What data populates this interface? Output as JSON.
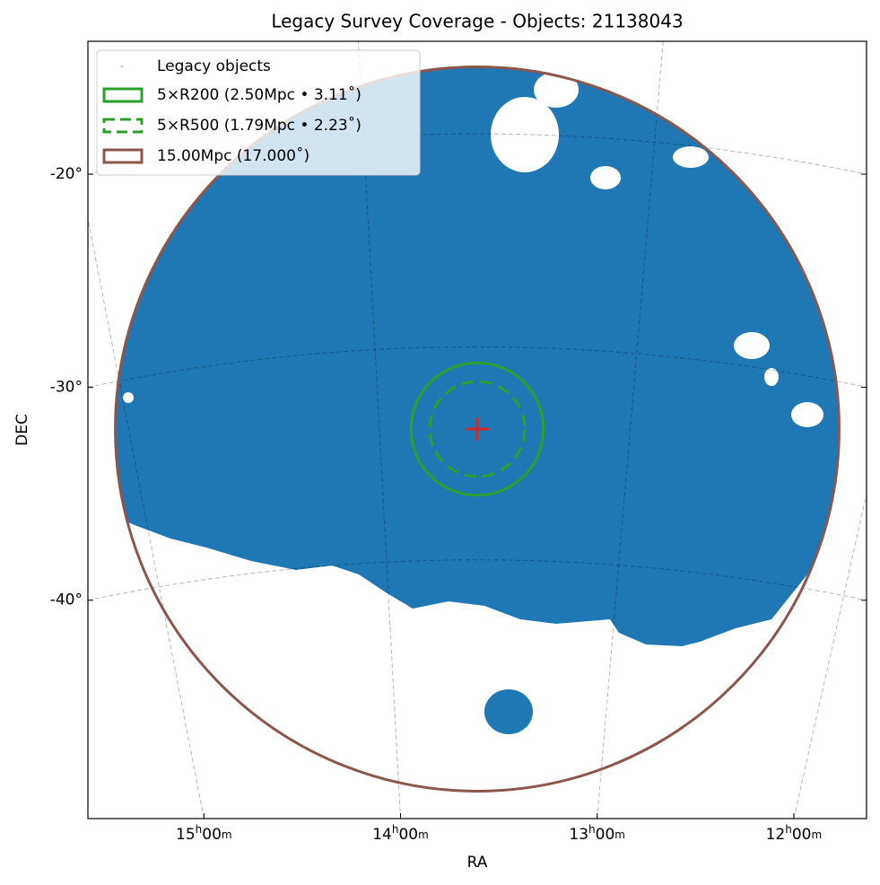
{
  "chart_data": {
    "type": "sky-map",
    "title": "Legacy Survey Coverage - Objects: 21138043",
    "x_label": "RA",
    "y_label": "DEC",
    "xlim": [
      15.59,
      11.63
    ],
    "xticks": [
      {
        "value": 15,
        "label": "15h00m"
      },
      {
        "value": 14,
        "label": "14h00m"
      },
      {
        "value": 13,
        "label": "13h00m"
      },
      {
        "value": 12,
        "label": "12h00m"
      }
    ],
    "ylim": [
      -13.76,
      -50.25
    ],
    "yticks": [
      {
        "value": -20,
        "label": "-20°"
      },
      {
        "value": -30,
        "label": "-30°"
      },
      {
        "value": -40,
        "label": "-40°"
      }
    ],
    "grid": true,
    "series": [
      {
        "name": "Legacy objects",
        "color": "#1f77b4"
      }
    ],
    "circles": [
      {
        "name": "5×R200 (2.50Mpc • 3.11˚)",
        "color": "#2ca02c",
        "radius": 3.11,
        "dashed": false
      },
      {
        "name": "5×R500 (1.79Mpc • 2.23˚)",
        "color": "#2ca02c",
        "radius": 2.23,
        "dashed": true
      },
      {
        "name": "15.00Mpc (17.000˚)",
        "color": "#8c564b",
        "radius": 17,
        "dashed": false
      }
    ],
    "legend": "upper left"
  }
}
